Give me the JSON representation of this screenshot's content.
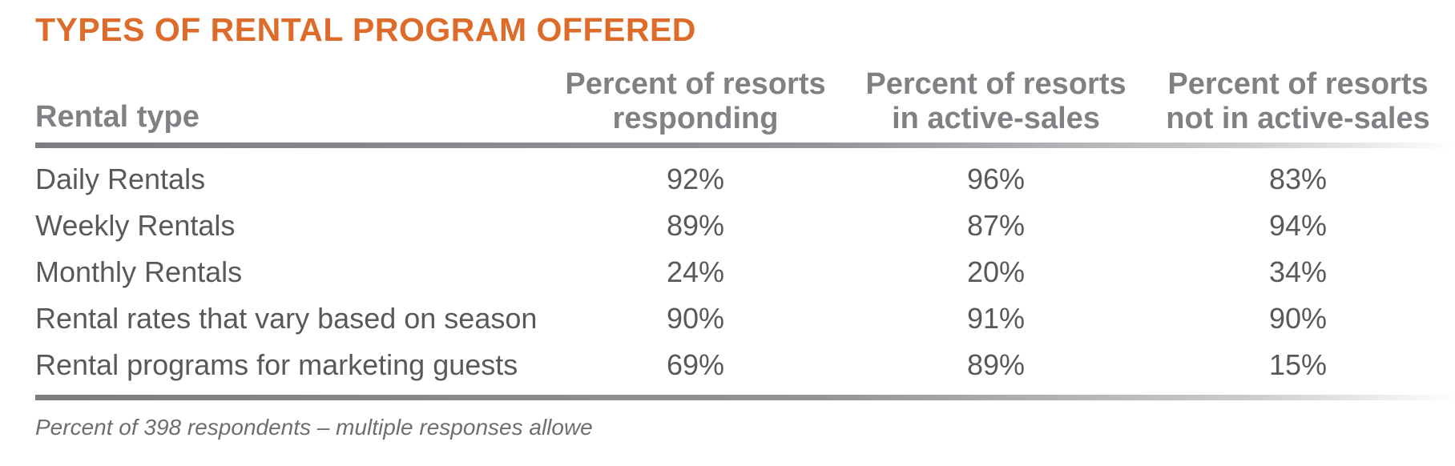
{
  "title": "TYPES OF RENTAL PROGRAM OFFERED",
  "header": {
    "rental_type": "Rental type",
    "col1_line1": "Percent of resorts",
    "col1_line2": "responding",
    "col2_line1": "Percent of resorts",
    "col2_line2": "in active-sales",
    "col3_line1": "Percent of resorts",
    "col3_line2": "not in active-sales"
  },
  "rows": [
    {
      "label": "Daily Rentals",
      "responding": "92%",
      "active_sales": "96%",
      "not_active_sales": "83%"
    },
    {
      "label": "Weekly Rentals",
      "responding": "89%",
      "active_sales": "87%",
      "not_active_sales": "94%"
    },
    {
      "label": "Monthly Rentals",
      "responding": "24%",
      "active_sales": "20%",
      "not_active_sales": "34%"
    },
    {
      "label": "Rental rates that vary based on season",
      "responding": "90%",
      "active_sales": "91%",
      "not_active_sales": "90%"
    },
    {
      "label": "Rental programs for marketing guests",
      "responding": "69%",
      "active_sales": "89%",
      "not_active_sales": "15%"
    }
  ],
  "footnote": "Percent of 398 respondents – multiple responses allowe",
  "colors": {
    "title": "#dd6b2a",
    "header_text": "#808185",
    "body_text": "#58595b",
    "rule": "#7c7d81"
  }
}
